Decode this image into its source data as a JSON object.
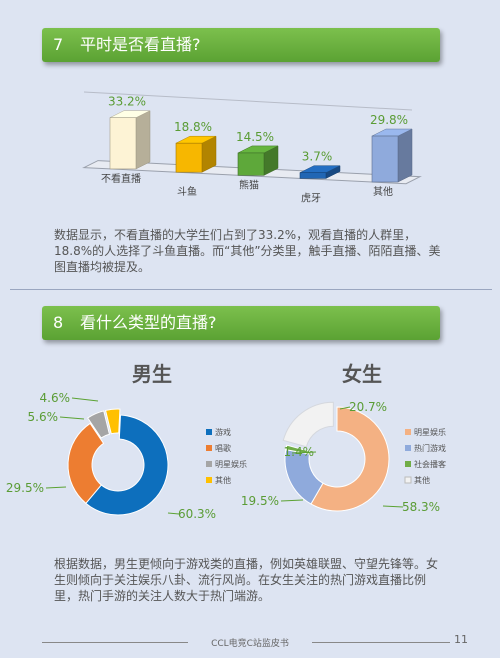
{
  "sections": [
    {
      "num": "7",
      "title": "平时是否看直播?",
      "paragraph": "数据显示，不看直播的大学生们占到了33.2%，观看直播的人群里，18.8%的人选择了斗鱼直播。而“其他”分类里，触手直播、陌陌直播、美图直播均被提及。"
    },
    {
      "num": "8",
      "title": "看什么类型的直播?",
      "paragraph": "根据数据，男生更倾向于游戏类的直播，例如英雄联盟、守望先锋等。女生则倾向于关注娱乐八卦、流行风尚。在女生关注的热门游戏直播比例里，热门手游的关注人数大于热门端游。"
    }
  ],
  "chart_data": [
    {
      "type": "bar",
      "style": "3d",
      "categories": [
        "不看直播",
        "斗鱼",
        "熊猫",
        "虎牙",
        "其他"
      ],
      "values": [
        33.2,
        18.8,
        14.5,
        3.7,
        29.8
      ],
      "value_labels": [
        "33.2%",
        "18.8%",
        "14.5%",
        "3.7%",
        "29.8%"
      ],
      "colors": [
        "#fdf3d5",
        "#f7b700",
        "#5ea83a",
        "#2166b4",
        "#8faadc"
      ],
      "ylim": [
        0,
        35
      ],
      "grid": false
    },
    {
      "type": "pie",
      "style": "donut",
      "title": "男生",
      "categories": [
        "游戏",
        "唱歌",
        "明星娱乐",
        "其他"
      ],
      "values": [
        60.3,
        29.5,
        5.6,
        4.6
      ],
      "value_labels": [
        "60.3%",
        "29.5%",
        "5.6%",
        "4.6%"
      ],
      "colors": [
        "#0d6fbd",
        "#ed7d31",
        "#a5a5a5",
        "#ffc000"
      ],
      "legend_position": "right"
    },
    {
      "type": "pie",
      "style": "donut",
      "title": "女生",
      "categories": [
        "明星娱乐",
        "热门游戏",
        "社会播客",
        "其他"
      ],
      "values": [
        58.3,
        19.5,
        1.4,
        20.7
      ],
      "value_labels": [
        "58.3%",
        "19.5%",
        "1.4%",
        "20.7%"
      ],
      "colors": [
        "#f4b183",
        "#8faadc",
        "#70ad47",
        "#f2f2f2"
      ],
      "legend_position": "right"
    }
  ],
  "footer": {
    "text": "CCL电竞C站监皮书",
    "page": "11"
  }
}
